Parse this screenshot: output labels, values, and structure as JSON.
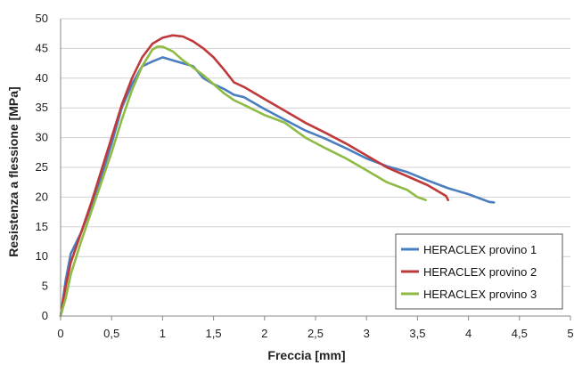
{
  "chart_data": {
    "type": "line",
    "xlabel": "Freccia [mm]",
    "ylabel": "Resistenza a flessione [MPa]",
    "xlim": [
      0,
      5
    ],
    "ylim": [
      0,
      50
    ],
    "x_ticks": [
      "0",
      "0,5",
      "1",
      "1,5",
      "2",
      "2,5",
      "3",
      "3,5",
      "4",
      "4,5",
      "5"
    ],
    "y_ticks": [
      "0",
      "5",
      "10",
      "15",
      "20",
      "25",
      "30",
      "35",
      "40",
      "45",
      "50"
    ],
    "grid": true,
    "legend_position": "bottom-right",
    "series": [
      {
        "name": "HERACLEX provino 1",
        "color": "#4a7ebf",
        "points": [
          [
            0,
            0
          ],
          [
            0.05,
            6
          ],
          [
            0.1,
            10.5
          ],
          [
            0.2,
            14
          ],
          [
            0.3,
            18.5
          ],
          [
            0.4,
            23.5
          ],
          [
            0.5,
            29
          ],
          [
            0.6,
            35
          ],
          [
            0.7,
            39
          ],
          [
            0.8,
            42
          ],
          [
            0.9,
            42.8
          ],
          [
            1.0,
            43.5
          ],
          [
            1.1,
            43
          ],
          [
            1.2,
            42.5
          ],
          [
            1.3,
            42
          ],
          [
            1.4,
            40
          ],
          [
            1.5,
            39
          ],
          [
            1.6,
            38.2
          ],
          [
            1.7,
            37.2
          ],
          [
            1.8,
            36.8
          ],
          [
            2.0,
            34.8
          ],
          [
            2.2,
            33
          ],
          [
            2.4,
            31.2
          ],
          [
            2.6,
            29.8
          ],
          [
            2.8,
            28.2
          ],
          [
            3.0,
            26.5
          ],
          [
            3.2,
            25.2
          ],
          [
            3.4,
            24.2
          ],
          [
            3.6,
            22.8
          ],
          [
            3.8,
            21.5
          ],
          [
            4.0,
            20.5
          ],
          [
            4.2,
            19.2
          ],
          [
            4.25,
            19.1
          ]
        ]
      },
      {
        "name": "HERACLEX provino 2",
        "color": "#c0393a",
        "points": [
          [
            0,
            0
          ],
          [
            0.05,
            5
          ],
          [
            0.1,
            9
          ],
          [
            0.2,
            14
          ],
          [
            0.3,
            19
          ],
          [
            0.4,
            24.5
          ],
          [
            0.5,
            30
          ],
          [
            0.6,
            35.5
          ],
          [
            0.7,
            40
          ],
          [
            0.8,
            43.5
          ],
          [
            0.9,
            45.8
          ],
          [
            1.0,
            46.8
          ],
          [
            1.1,
            47.2
          ],
          [
            1.2,
            47
          ],
          [
            1.3,
            46.2
          ],
          [
            1.4,
            45
          ],
          [
            1.5,
            43.5
          ],
          [
            1.6,
            41.5
          ],
          [
            1.7,
            39.3
          ],
          [
            1.8,
            38.5
          ],
          [
            2.0,
            36.5
          ],
          [
            2.2,
            34.5
          ],
          [
            2.4,
            32.5
          ],
          [
            2.6,
            30.8
          ],
          [
            2.8,
            29
          ],
          [
            3.0,
            27
          ],
          [
            3.2,
            25
          ],
          [
            3.4,
            23.5
          ],
          [
            3.6,
            22
          ],
          [
            3.7,
            21
          ],
          [
            3.78,
            20.2
          ],
          [
            3.8,
            19.5
          ]
        ]
      },
      {
        "name": "HERACLEX provino 3",
        "color": "#8fbb45",
        "points": [
          [
            0,
            0
          ],
          [
            0.05,
            3
          ],
          [
            0.1,
            7
          ],
          [
            0.2,
            12.5
          ],
          [
            0.3,
            17.5
          ],
          [
            0.4,
            22.5
          ],
          [
            0.5,
            27.5
          ],
          [
            0.6,
            33
          ],
          [
            0.7,
            38
          ],
          [
            0.8,
            42
          ],
          [
            0.9,
            44.8
          ],
          [
            0.95,
            45.3
          ],
          [
            1.0,
            45.3
          ],
          [
            1.1,
            44.5
          ],
          [
            1.2,
            43
          ],
          [
            1.3,
            41.8
          ],
          [
            1.4,
            40.5
          ],
          [
            1.5,
            39
          ],
          [
            1.6,
            37.5
          ],
          [
            1.7,
            36.3
          ],
          [
            1.8,
            35.5
          ],
          [
            2.0,
            33.8
          ],
          [
            2.2,
            32.5
          ],
          [
            2.4,
            30
          ],
          [
            2.6,
            28.2
          ],
          [
            2.8,
            26.5
          ],
          [
            3.0,
            24.5
          ],
          [
            3.2,
            22.5
          ],
          [
            3.4,
            21.2
          ],
          [
            3.5,
            20
          ],
          [
            3.58,
            19.5
          ]
        ]
      }
    ]
  }
}
